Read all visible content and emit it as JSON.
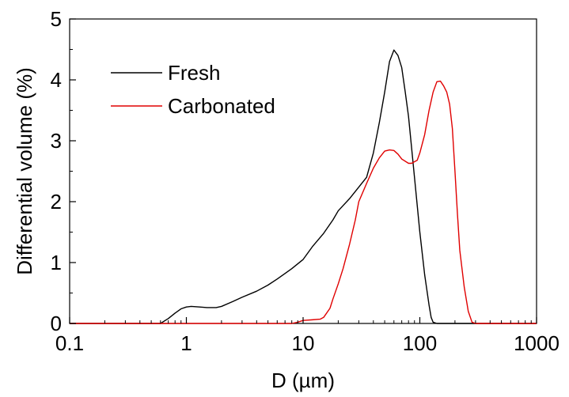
{
  "chart_data": {
    "type": "line",
    "xlabel": "D (µm)",
    "ylabel": "Differential volume (%)",
    "xscale": "log",
    "xlim": [
      0.1,
      1000
    ],
    "ylim": [
      0,
      5
    ],
    "grid": false,
    "legend_position": "top-left",
    "x_ticks": [
      0.1,
      1,
      10,
      100,
      1000
    ],
    "x_tick_labels": [
      "0.1",
      "1",
      "10",
      "100",
      "1000"
    ],
    "y_ticks": [
      0,
      1,
      2,
      3,
      4,
      5
    ],
    "y_tick_labels": [
      "0",
      "1",
      "2",
      "3",
      "4",
      "5"
    ],
    "series": [
      {
        "name": "Fresh",
        "color": "#000000",
        "points": [
          [
            0.1,
            0
          ],
          [
            0.6,
            0
          ],
          [
            0.7,
            0.08
          ],
          [
            0.8,
            0.17
          ],
          [
            0.9,
            0.24
          ],
          [
            1.0,
            0.27
          ],
          [
            1.1,
            0.28
          ],
          [
            1.3,
            0.27
          ],
          [
            1.5,
            0.26
          ],
          [
            1.8,
            0.26
          ],
          [
            2.0,
            0.28
          ],
          [
            2.5,
            0.36
          ],
          [
            3.0,
            0.43
          ],
          [
            4.0,
            0.53
          ],
          [
            5.0,
            0.63
          ],
          [
            6.0,
            0.73
          ],
          [
            7.0,
            0.82
          ],
          [
            8.0,
            0.9
          ],
          [
            10.0,
            1.05
          ],
          [
            12.0,
            1.26
          ],
          [
            15.0,
            1.48
          ],
          [
            18.0,
            1.7
          ],
          [
            20.0,
            1.85
          ],
          [
            25.0,
            2.05
          ],
          [
            30.0,
            2.24
          ],
          [
            35.0,
            2.4
          ],
          [
            40.0,
            2.8
          ],
          [
            45.0,
            3.3
          ],
          [
            50.0,
            3.8
          ],
          [
            55.0,
            4.3
          ],
          [
            60.0,
            4.49
          ],
          [
            65.0,
            4.4
          ],
          [
            70.0,
            4.2
          ],
          [
            75.0,
            3.8
          ],
          [
            80.0,
            3.4
          ],
          [
            90.0,
            2.4
          ],
          [
            100.0,
            1.5
          ],
          [
            110.0,
            0.8
          ],
          [
            120.0,
            0.3
          ],
          [
            125.0,
            0.1
          ],
          [
            130.0,
            0.02
          ],
          [
            140.0,
            0
          ],
          [
            1000,
            0
          ]
        ]
      },
      {
        "name": "Carbonated",
        "color": "#e00000",
        "points": [
          [
            0.1,
            0
          ],
          [
            8.0,
            0
          ],
          [
            9.0,
            0.02
          ],
          [
            10.0,
            0.05
          ],
          [
            12.0,
            0.06
          ],
          [
            14.0,
            0.07
          ],
          [
            15.0,
            0.1
          ],
          [
            17.0,
            0.25
          ],
          [
            18.0,
            0.4
          ],
          [
            20.0,
            0.65
          ],
          [
            22.0,
            0.9
          ],
          [
            25.0,
            1.3
          ],
          [
            28.0,
            1.7
          ],
          [
            30.0,
            2.0
          ],
          [
            35.0,
            2.3
          ],
          [
            40.0,
            2.55
          ],
          [
            45.0,
            2.72
          ],
          [
            50.0,
            2.83
          ],
          [
            55.0,
            2.85
          ],
          [
            60.0,
            2.84
          ],
          [
            65.0,
            2.78
          ],
          [
            70.0,
            2.7
          ],
          [
            80.0,
            2.63
          ],
          [
            85.0,
            2.63
          ],
          [
            95.0,
            2.68
          ],
          [
            100.0,
            2.8
          ],
          [
            110.0,
            3.1
          ],
          [
            120.0,
            3.5
          ],
          [
            130.0,
            3.8
          ],
          [
            140.0,
            3.97
          ],
          [
            150.0,
            3.98
          ],
          [
            160.0,
            3.9
          ],
          [
            170.0,
            3.8
          ],
          [
            180.0,
            3.6
          ],
          [
            190.0,
            3.2
          ],
          [
            200.0,
            2.5
          ],
          [
            210.0,
            1.8
          ],
          [
            220.0,
            1.2
          ],
          [
            240.0,
            0.6
          ],
          [
            260.0,
            0.2
          ],
          [
            280.0,
            0.02
          ],
          [
            300.0,
            0
          ],
          [
            1000,
            0
          ]
        ]
      }
    ]
  }
}
